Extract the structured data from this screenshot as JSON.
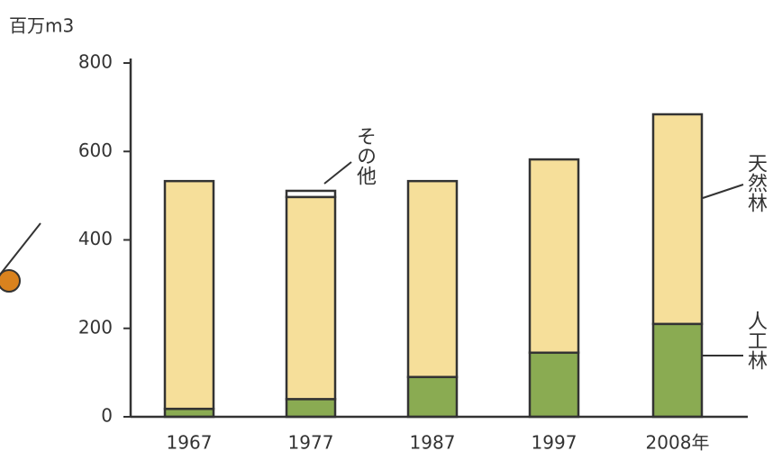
{
  "chart_data": {
    "type": "stacked_bar",
    "y_axis_label": "百万m3",
    "categories": [
      "1967",
      "1977",
      "1987",
      "1997",
      "2008年"
    ],
    "series": [
      {
        "name": "人工林",
        "color": "#8aab52",
        "values": [
          18,
          40,
          90,
          145,
          210
        ]
      },
      {
        "name": "天然林",
        "color": "#f6df9a",
        "values": [
          515,
          457,
          443,
          437,
          474
        ]
      },
      {
        "name": "その他",
        "color": "#ffffff",
        "values": [
          0,
          14,
          0,
          0,
          0
        ]
      }
    ],
    "ylim": [
      0,
      800
    ],
    "yticks": [
      0,
      200,
      400,
      600,
      800
    ],
    "grid": false
  }
}
